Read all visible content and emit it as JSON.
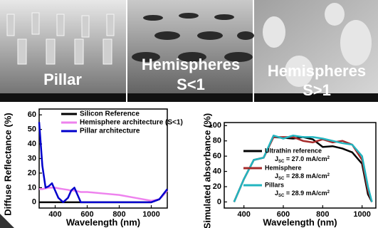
{
  "images": [
    {
      "label": [
        "Pillar"
      ]
    },
    {
      "label": [
        "Hemispheres",
        "S<1"
      ]
    },
    {
      "label": [
        "Hemispheres",
        "S>1"
      ]
    }
  ],
  "chart_data": [
    {
      "type": "line",
      "ylabel": "Diffuse Reflectance (%)",
      "xlabel": "Wavelength (nm)",
      "x": [
        300,
        320,
        340,
        360,
        380,
        400,
        420,
        450,
        480,
        500,
        520,
        540,
        560,
        600,
        700,
        800,
        900,
        1000,
        1050,
        1100
      ],
      "series": [
        {
          "name": "Silicon Reference",
          "color": "#000000",
          "values": [
            0,
            0,
            0,
            0,
            0,
            0,
            0,
            0,
            0,
            0,
            0,
            0,
            0,
            0,
            0,
            0,
            0,
            0,
            2,
            8
          ]
        },
        {
          "name": "Hemisphere architecture (S<1)",
          "color": "#ee82ee",
          "values": [
            9,
            9,
            9.5,
            10,
            10,
            10,
            9.5,
            9,
            8.5,
            8,
            8,
            7.5,
            7,
            7,
            6,
            5,
            3,
            1,
            2,
            8
          ]
        },
        {
          "name": "Pillar architecture",
          "color": "#0000cc",
          "values": [
            55,
            25,
            10,
            11,
            13,
            8,
            3,
            0,
            3,
            8,
            10,
            5,
            0,
            0,
            0,
            0,
            0,
            0,
            2,
            9
          ]
        }
      ],
      "xlim": [
        300,
        1100
      ],
      "ylim": [
        -4,
        64
      ],
      "xticks": [
        400,
        600,
        800,
        1000
      ],
      "yticks": [
        0,
        10,
        20,
        30,
        40,
        50,
        60
      ]
    },
    {
      "type": "line",
      "ylabel": "Simulated absorbance (%)",
      "xlabel": "Wavelength (nm)",
      "x": [
        350,
        400,
        450,
        500,
        550,
        600,
        650,
        700,
        750,
        800,
        850,
        900,
        950,
        1000,
        1030,
        1050
      ],
      "series": [
        {
          "name": "Ultrathin reference",
          "color": "#000000",
          "values": [
            0,
            30,
            55,
            58,
            85,
            84,
            83,
            85,
            82,
            72,
            73,
            70,
            65,
            50,
            10,
            0
          ],
          "annotation": {
            "symbol": "J",
            "subscript": "SC",
            "text": " = 27.0 mA/cm",
            "superscript": "2"
          }
        },
        {
          "name": "Hemisphere",
          "color": "#a52a2a",
          "values": [
            0,
            30,
            55,
            58,
            85,
            85,
            85,
            80,
            78,
            82,
            78,
            80,
            75,
            55,
            15,
            0
          ],
          "annotation": {
            "symbol": "J",
            "subscript": "SC",
            "text": " = 28.8 mA/cm",
            "superscript": "2"
          }
        },
        {
          "name": "Pillars",
          "color": "#22b5c0",
          "values": [
            0,
            30,
            55,
            58,
            87,
            83,
            87,
            85,
            85,
            83,
            80,
            77,
            75,
            60,
            20,
            0
          ],
          "annotation": {
            "symbol": "J",
            "subscript": "SC",
            "text": " = 28.9 mA/cm",
            "superscript": "2"
          }
        }
      ],
      "xlim": [
        300,
        1070
      ],
      "ylim": [
        -8,
        104
      ],
      "xticks": [
        400,
        600,
        800,
        1000
      ],
      "yticks": [
        0,
        20,
        40,
        60,
        80,
        100
      ]
    }
  ]
}
